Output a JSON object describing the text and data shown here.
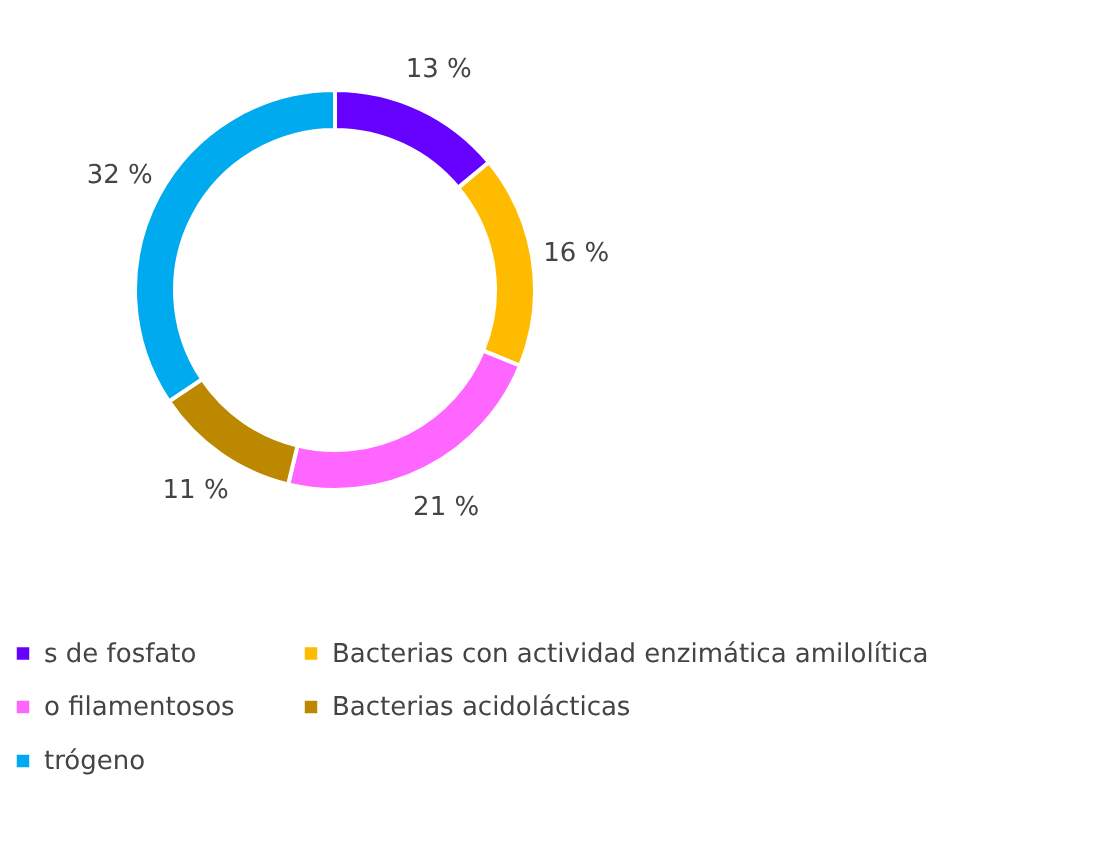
{
  "chart_data": {
    "type": "donut",
    "categories": [
      "s de fosfato",
      "Bacterias con actividad enzimática amilolítica",
      "o filamentosos",
      "Bacterias acidolácticas",
      "trógeno"
    ],
    "values": [
      13,
      16,
      21,
      11,
      32
    ],
    "colors": [
      "#6600ff",
      "#ffbb00",
      "#ff66ff",
      "#bb8800",
      "#00aaee"
    ],
    "value_labels": [
      "13 %",
      "16 %",
      "21 %",
      "11 %",
      "32 %"
    ],
    "legend": "bottom"
  }
}
